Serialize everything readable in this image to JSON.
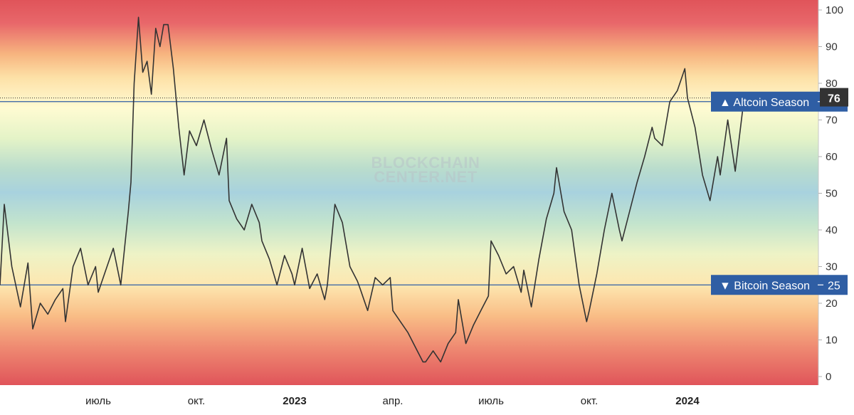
{
  "chart_data": {
    "type": "line",
    "ylim": [
      0,
      100
    ],
    "y_ticks": [
      "0",
      "10",
      "20",
      "30",
      "40",
      "50",
      "60",
      "70",
      "80",
      "90",
      "100"
    ],
    "x_ticks": [
      {
        "label": "июль",
        "bold": false
      },
      {
        "label": "окт.",
        "bold": false
      },
      {
        "label": "2023",
        "bold": true
      },
      {
        "label": "апр.",
        "bold": false
      },
      {
        "label": "июль",
        "bold": false
      },
      {
        "label": "окт.",
        "bold": false
      },
      {
        "label": "2024",
        "bold": true
      }
    ],
    "x_tick_months": [
      "2022-07",
      "2022-10",
      "2023-01",
      "2023-04",
      "2023-07",
      "2023-10",
      "2024-01"
    ],
    "x_range": [
      "2022-04",
      "2024-05"
    ],
    "background": "vertical gradient: red at 0 and 100, orange, yellow near 75, green, blue near 50",
    "watermark": [
      "BLOCKCHAIN",
      "CENTER.NET"
    ],
    "reference_lines": [
      {
        "label": "▲ Altcoin Season",
        "value": 75
      },
      {
        "label": "▼ Bitcoin Season",
        "value": 25
      }
    ],
    "last_value_label": "76",
    "last_value": 76,
    "series": [
      {
        "line_color": "#333333",
        "points": [
          [
            "2022-04",
            25
          ],
          [
            "2022-04-05",
            47
          ],
          [
            "2022-04-12",
            30
          ],
          [
            "2022-04-20",
            19
          ],
          [
            "2022-04-27",
            31
          ],
          [
            "2022-05",
            13
          ],
          [
            "2022-05-08",
            20
          ],
          [
            "2022-05-15",
            17
          ],
          [
            "2022-05-22",
            21
          ],
          [
            "2022-05-29",
            24
          ],
          [
            "2022-06",
            15
          ],
          [
            "2022-06-08",
            30
          ],
          [
            "2022-06-15",
            35
          ],
          [
            "2022-06-22",
            25
          ],
          [
            "2022-06-29",
            30
          ],
          [
            "2022-07",
            23
          ],
          [
            "2022-07-08",
            29
          ],
          [
            "2022-07-15",
            35
          ],
          [
            "2022-07-22",
            25
          ],
          [
            "2022-07-29",
            45
          ],
          [
            "2022-08",
            53
          ],
          [
            "2022-08-04",
            80
          ],
          [
            "2022-08-08",
            98
          ],
          [
            "2022-08-12",
            83
          ],
          [
            "2022-08-16",
            86
          ],
          [
            "2022-08-20",
            77
          ],
          [
            "2022-08-24",
            95
          ],
          [
            "2022-08-28",
            90
          ],
          [
            "2022-09",
            96
          ],
          [
            "2022-09-05",
            96
          ],
          [
            "2022-09-10",
            84
          ],
          [
            "2022-09-15",
            68
          ],
          [
            "2022-09-20",
            55
          ],
          [
            "2022-09-25",
            67
          ],
          [
            "2022-10",
            63
          ],
          [
            "2022-10-08",
            70
          ],
          [
            "2022-10-15",
            62
          ],
          [
            "2022-10-22",
            55
          ],
          [
            "2022-10-29",
            65
          ],
          [
            "2022-11",
            48
          ],
          [
            "2022-11-08",
            43
          ],
          [
            "2022-11-15",
            40
          ],
          [
            "2022-11-22",
            47
          ],
          [
            "2022-11-29",
            42
          ],
          [
            "2022-12",
            37
          ],
          [
            "2022-12-08",
            32
          ],
          [
            "2022-12-15",
            25
          ],
          [
            "2022-12-22",
            33
          ],
          [
            "2022-12-29",
            28
          ],
          [
            "2023-01",
            25
          ],
          [
            "2023-01-08",
            35
          ],
          [
            "2023-01-15",
            24
          ],
          [
            "2023-01-22",
            28
          ],
          [
            "2023-01-29",
            21
          ],
          [
            "2023-02",
            25
          ],
          [
            "2023-02-08",
            47
          ],
          [
            "2023-02-15",
            42
          ],
          [
            "2023-02-22",
            30
          ],
          [
            "2023-02-29",
            26
          ],
          [
            "2023-03",
            24
          ],
          [
            "2023-03-08",
            18
          ],
          [
            "2023-03-15",
            27
          ],
          [
            "2023-03-22",
            25
          ],
          [
            "2023-03-29",
            27
          ],
          [
            "2023-04",
            18
          ],
          [
            "2023-04-08",
            15
          ],
          [
            "2023-04-15",
            12
          ],
          [
            "2023-04-22",
            8
          ],
          [
            "2023-04-29",
            4
          ],
          [
            "2023-05",
            4
          ],
          [
            "2023-05-08",
            7
          ],
          [
            "2023-05-15",
            4
          ],
          [
            "2023-05-22",
            9
          ],
          [
            "2023-05-29",
            12
          ],
          [
            "2023-06",
            21
          ],
          [
            "2023-06-08",
            9
          ],
          [
            "2023-06-15",
            14
          ],
          [
            "2023-06-22",
            18
          ],
          [
            "2023-06-29",
            22
          ],
          [
            "2023-07",
            37
          ],
          [
            "2023-07-08",
            33
          ],
          [
            "2023-07-15",
            28
          ],
          [
            "2023-07-22",
            30
          ],
          [
            "2023-07-29",
            23
          ],
          [
            "2023-08",
            29
          ],
          [
            "2023-08-08",
            19
          ],
          [
            "2023-08-15",
            32
          ],
          [
            "2023-08-22",
            43
          ],
          [
            "2023-08-29",
            50
          ],
          [
            "2023-09",
            57
          ],
          [
            "2023-09-08",
            45
          ],
          [
            "2023-09-15",
            40
          ],
          [
            "2023-09-22",
            25
          ],
          [
            "2023-09-29",
            15
          ],
          [
            "2023-10",
            18
          ],
          [
            "2023-10-08",
            28
          ],
          [
            "2023-10-15",
            40
          ],
          [
            "2023-10-22",
            50
          ],
          [
            "2023-10-29",
            40
          ],
          [
            "2023-11",
            37
          ],
          [
            "2023-11-08",
            45
          ],
          [
            "2023-11-15",
            53
          ],
          [
            "2023-11-22",
            60
          ],
          [
            "2023-11-29",
            68
          ],
          [
            "2023-12",
            65
          ],
          [
            "2023-12-08",
            63
          ],
          [
            "2023-12-15",
            75
          ],
          [
            "2023-12-22",
            78
          ],
          [
            "2023-12-29",
            84
          ],
          [
            "2024-01",
            76
          ],
          [
            "2024-01-08",
            68
          ],
          [
            "2024-01-15",
            55
          ],
          [
            "2024-01-22",
            48
          ],
          [
            "2024-01-29",
            60
          ],
          [
            "2024-02",
            55
          ],
          [
            "2024-02-08",
            70
          ],
          [
            "2024-02-15",
            56
          ],
          [
            "2024-02-22",
            73
          ],
          [
            "2024-02-29",
            76
          ]
        ]
      }
    ]
  }
}
